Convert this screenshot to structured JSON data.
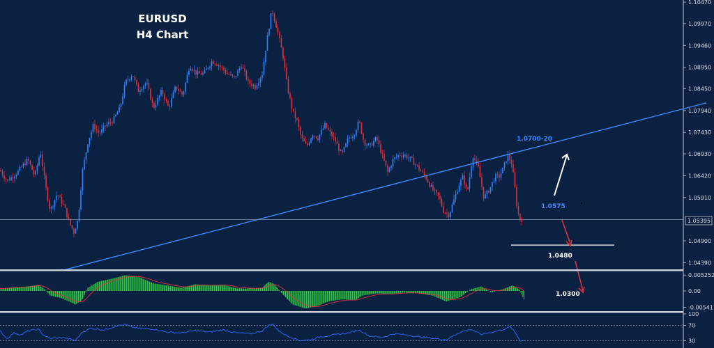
{
  "colors": {
    "background": "#0b2142",
    "bull": "#2f86ff",
    "bear": "#e0323c",
    "trendline": "#3b8cff",
    "macd_hist": "#2ecc40",
    "macd_signal": "#e0323c",
    "rsi_line": "#2f6bff",
    "separator": "#c8cdd6"
  },
  "chart_data": [
    {
      "type": "candlestick",
      "title": "EURUSD",
      "subtitle": "H4 Chart",
      "y_axis_ticks": [
        "1.10470",
        "1.09970",
        "1.09460",
        "1.08950",
        "1.08450",
        "1.07940",
        "1.07430",
        "1.06930",
        "1.06420",
        "1.05910",
        "1.04900",
        "1.04390"
      ],
      "ylim": [
        1.0425,
        1.1052
      ],
      "current_price": "1.05395",
      "close_path": [
        [
          0,
          1.0655
        ],
        [
          10,
          1.063
        ],
        [
          25,
          1.065
        ],
        [
          40,
          1.068
        ],
        [
          50,
          1.064
        ],
        [
          58,
          1.07
        ],
        [
          65,
          1.062
        ],
        [
          72,
          1.056
        ],
        [
          82,
          1.06
        ],
        [
          92,
          1.057
        ],
        [
          100,
          1.053
        ],
        [
          106,
          1.051
        ],
        [
          112,
          1.054
        ],
        [
          118,
          1.065
        ],
        [
          126,
          1.072
        ],
        [
          134,
          1.076
        ],
        [
          142,
          1.074
        ],
        [
          152,
          1.076
        ],
        [
          162,
          1.077
        ],
        [
          172,
          1.08
        ],
        [
          180,
          1.086
        ],
        [
          190,
          1.088
        ],
        [
          198,
          1.084
        ],
        [
          210,
          1.086
        ],
        [
          220,
          1.08
        ],
        [
          232,
          1.084
        ],
        [
          242,
          1.08
        ],
        [
          252,
          1.085
        ],
        [
          262,
          1.083
        ],
        [
          272,
          1.09
        ],
        [
          282,
          1.088
        ],
        [
          292,
          1.088
        ],
        [
          304,
          1.091
        ],
        [
          314,
          1.09
        ],
        [
          326,
          1.088
        ],
        [
          336,
          1.087
        ],
        [
          346,
          1.09
        ],
        [
          356,
          1.086
        ],
        [
          366,
          1.085
        ],
        [
          376,
          1.088
        ],
        [
          382,
          1.095
        ],
        [
          390,
          1.103
        ],
        [
          398,
          1.098
        ],
        [
          406,
          1.092
        ],
        [
          412,
          1.085
        ],
        [
          420,
          1.079
        ],
        [
          426,
          1.077
        ],
        [
          432,
          1.073
        ],
        [
          440,
          1.071
        ],
        [
          448,
          1.074
        ],
        [
          456,
          1.073
        ],
        [
          466,
          1.076
        ],
        [
          474,
          1.074
        ],
        [
          482,
          1.072
        ],
        [
          490,
          1.069
        ],
        [
          500,
          1.073
        ],
        [
          508,
          1.074
        ],
        [
          515,
          1.077
        ],
        [
          522,
          1.072
        ],
        [
          530,
          1.071
        ],
        [
          540,
          1.073
        ],
        [
          548,
          1.069
        ],
        [
          556,
          1.065
        ],
        [
          564,
          1.068
        ],
        [
          572,
          1.069
        ],
        [
          580,
          1.069
        ],
        [
          590,
          1.068
        ],
        [
          600,
          1.066
        ],
        [
          610,
          1.064
        ],
        [
          620,
          1.061
        ],
        [
          630,
          1.059
        ],
        [
          636,
          1.056
        ],
        [
          644,
          1.055
        ],
        [
          650,
          1.058
        ],
        [
          658,
          1.062
        ],
        [
          664,
          1.064
        ],
        [
          670,
          1.06
        ],
        [
          678,
          1.069
        ],
        [
          686,
          1.066
        ],
        [
          694,
          1.059
        ],
        [
          702,
          1.061
        ],
        [
          710,
          1.064
        ],
        [
          716,
          1.064
        ],
        [
          722,
          1.066
        ],
        [
          728,
          1.069
        ],
        [
          734,
          1.067
        ],
        [
          738,
          1.062
        ],
        [
          742,
          1.056
        ],
        [
          746,
          1.054
        ],
        [
          750,
          1.0541
        ]
      ],
      "trendline": {
        "from": {
          "x_index": 87,
          "y": 1.042
        },
        "to": {
          "x_index": 1013,
          "y": 1.0812
        }
      },
      "support_line": {
        "from_index": 733,
        "to_index": 881,
        "y": 1.048
      },
      "annotations": [
        {
          "text": "1.0700-20",
          "style": "blue"
        },
        {
          "text": "1.0575",
          "style": "blue"
        },
        {
          "text": "1.0480",
          "style": "white"
        },
        {
          "text": "1.0300",
          "style": "white"
        }
      ]
    },
    {
      "type": "bar",
      "name": "macd",
      "y_axis_ticks": [
        "0.005252",
        "0.00",
        "-0.005417"
      ],
      "ylim": [
        -0.0062,
        0.0062
      ],
      "path": [
        [
          0,
          0.0008
        ],
        [
          20,
          0.0012
        ],
        [
          40,
          0.0015
        ],
        [
          55,
          0.002
        ],
        [
          62,
          0.001
        ],
        [
          72,
          -0.0015
        ],
        [
          90,
          -0.0025
        ],
        [
          108,
          -0.0045
        ],
        [
          118,
          -0.003
        ],
        [
          126,
          0.001
        ],
        [
          140,
          0.003
        ],
        [
          160,
          0.004
        ],
        [
          180,
          0.0052
        ],
        [
          200,
          0.0045
        ],
        [
          220,
          0.0025
        ],
        [
          240,
          0.0018
        ],
        [
          260,
          0.001
        ],
        [
          280,
          0.0022
        ],
        [
          300,
          0.0018
        ],
        [
          320,
          0.002
        ],
        [
          340,
          0.0008
        ],
        [
          360,
          0.0008
        ],
        [
          376,
          0.001
        ],
        [
          385,
          0.003
        ],
        [
          392,
          0.0025
        ],
        [
          405,
          -0.001
        ],
        [
          420,
          -0.0045
        ],
        [
          438,
          -0.0058
        ],
        [
          455,
          -0.005
        ],
        [
          470,
          -0.0035
        ],
        [
          490,
          -0.0028
        ],
        [
          510,
          -0.003
        ],
        [
          520,
          -0.0015
        ],
        [
          540,
          -0.0008
        ],
        [
          560,
          -0.001
        ],
        [
          580,
          -0.0005
        ],
        [
          600,
          -0.0008
        ],
        [
          620,
          -0.0015
        ],
        [
          640,
          -0.0035
        ],
        [
          660,
          -0.002
        ],
        [
          675,
          0.0005
        ],
        [
          690,
          0.0015
        ],
        [
          705,
          -0.0005
        ],
        [
          720,
          0.0005
        ],
        [
          735,
          0.0018
        ],
        [
          745,
          0.0005
        ],
        [
          752,
          -0.003
        ]
      ]
    },
    {
      "type": "line",
      "name": "rsi",
      "y_axis_ticks": [
        "100",
        "70",
        "30"
      ],
      "ylim": [
        25,
        100
      ],
      "path": [
        [
          0,
          55
        ],
        [
          10,
          35
        ],
        [
          20,
          50
        ],
        [
          30,
          45
        ],
        [
          40,
          55
        ],
        [
          55,
          60
        ],
        [
          62,
          45
        ],
        [
          72,
          35
        ],
        [
          90,
          38
        ],
        [
          108,
          30
        ],
        [
          118,
          52
        ],
        [
          130,
          62
        ],
        [
          150,
          58
        ],
        [
          170,
          70
        ],
        [
          180,
          72
        ],
        [
          190,
          65
        ],
        [
          200,
          62
        ],
        [
          220,
          60
        ],
        [
          240,
          52
        ],
        [
          260,
          50
        ],
        [
          280,
          56
        ],
        [
          300,
          52
        ],
        [
          320,
          58
        ],
        [
          340,
          50
        ],
        [
          360,
          48
        ],
        [
          376,
          55
        ],
        [
          385,
          70
        ],
        [
          392,
          72
        ],
        [
          400,
          55
        ],
        [
          412,
          42
        ],
        [
          430,
          30
        ],
        [
          445,
          32
        ],
        [
          460,
          40
        ],
        [
          480,
          45
        ],
        [
          500,
          50
        ],
        [
          515,
          58
        ],
        [
          530,
          42
        ],
        [
          548,
          38
        ],
        [
          565,
          48
        ],
        [
          585,
          44
        ],
        [
          600,
          40
        ],
        [
          620,
          36
        ],
        [
          640,
          32
        ],
        [
          660,
          52
        ],
        [
          675,
          60
        ],
        [
          690,
          46
        ],
        [
          705,
          52
        ],
        [
          720,
          58
        ],
        [
          732,
          66
        ],
        [
          740,
          48
        ],
        [
          746,
          30
        ],
        [
          752,
          30
        ]
      ]
    }
  ]
}
